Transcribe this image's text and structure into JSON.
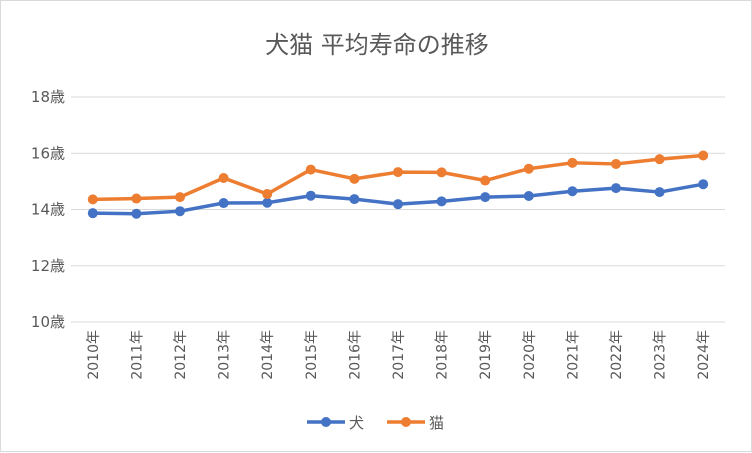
{
  "chart_data": {
    "type": "line",
    "title": "犬猫 平均寿命の推移",
    "categories": [
      "2010年",
      "2011年",
      "2012年",
      "2013年",
      "2014年",
      "2015年",
      "2016年",
      "2017年",
      "2018年",
      "2019年",
      "2020年",
      "2021年",
      "2022年",
      "2023年",
      "2024年"
    ],
    "series": [
      {
        "name": "犬",
        "color": "#4472c4",
        "values": [
          13.87,
          13.85,
          13.94,
          14.23,
          14.24,
          14.49,
          14.37,
          14.19,
          14.29,
          14.44,
          14.48,
          14.65,
          14.76,
          14.62,
          14.9
        ]
      },
      {
        "name": "猫",
        "color": "#ed7d31",
        "values": [
          14.36,
          14.39,
          14.44,
          15.12,
          14.55,
          15.42,
          15.09,
          15.33,
          15.32,
          15.03,
          15.45,
          15.66,
          15.62,
          15.79,
          15.92
        ]
      }
    ],
    "ylim": [
      10,
      18
    ],
    "yticks": [
      "10歳",
      "12歳",
      "14歳",
      "16歳",
      "18歳"
    ],
    "ytick_values": [
      10,
      12,
      14,
      16,
      18
    ],
    "grid": true,
    "legend": "bottom"
  }
}
